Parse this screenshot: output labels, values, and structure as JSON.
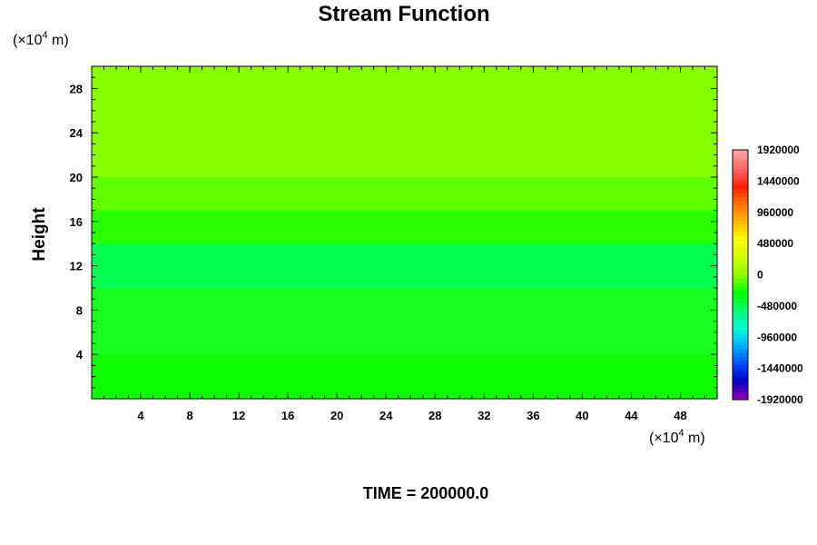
{
  "chart_data": {
    "type": "heatmap",
    "title": "Stream Function",
    "ylabel": "Height",
    "xlabel": "",
    "y_unit": {
      "pre": "(×10",
      "sup": "4",
      "post": " m)"
    },
    "x_unit": {
      "pre": "(×10",
      "sup": "4",
      "post": " m)"
    },
    "xlim": [
      0,
      51
    ],
    "ylim": [
      0,
      30
    ],
    "x_ticks": [
      "4",
      "8",
      "12",
      "16",
      "20",
      "24",
      "28",
      "32",
      "36",
      "40",
      "44",
      "48"
    ],
    "y_ticks": [
      "4",
      "8",
      "12",
      "16",
      "20",
      "24",
      "28"
    ],
    "colorbar": {
      "min": -1920000,
      "max": 1920000,
      "labels": [
        "1920000",
        "1440000",
        "960000",
        "480000",
        "0",
        "-480000",
        "-960000",
        "-1440000",
        "-1920000"
      ],
      "colors": [
        "#8a00b0",
        "#0000c8",
        "#0050ff",
        "#00b4ff",
        "#00ffd2",
        "#00ff78",
        "#00ff00",
        "#8cff00",
        "#d2ff00",
        "#ffff00",
        "#ffbe00",
        "#ff7800",
        "#ff1e00",
        "#ff6464",
        "#ffa0a0"
      ]
    },
    "field_bands": [
      {
        "y_range": [
          0,
          4
        ],
        "color": "#10ff00"
      },
      {
        "y_range": [
          4,
          10
        ],
        "color": "#18ff20"
      },
      {
        "y_range": [
          10,
          14
        ],
        "color": "#00ff50"
      },
      {
        "y_range": [
          14,
          17
        ],
        "color": "#28ff00"
      },
      {
        "y_range": [
          17,
          20
        ],
        "color": "#60ff00"
      },
      {
        "y_range": [
          20,
          30
        ],
        "color": "#88ff00"
      }
    ],
    "footer": "TIME = 200000.0"
  }
}
